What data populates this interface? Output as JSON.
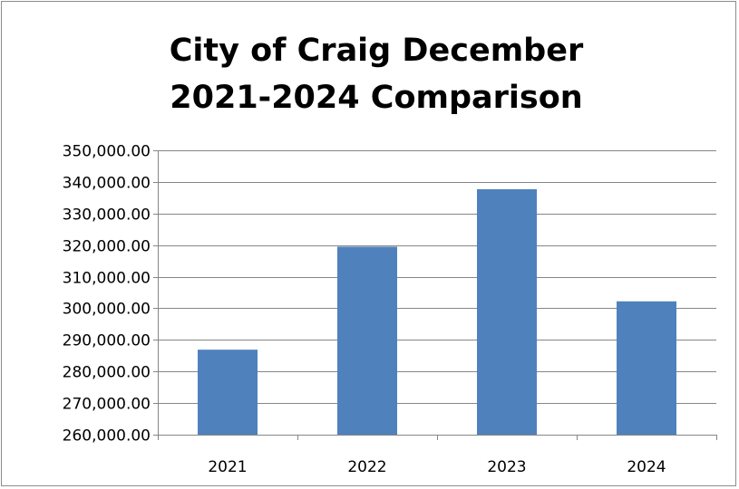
{
  "chart_data": {
    "type": "bar",
    "title_lines": [
      "City of Craig December",
      "2021-2024 Comparison"
    ],
    "categories": [
      "2021",
      "2022",
      "2023",
      "2024"
    ],
    "values": [
      286900,
      319500,
      337700,
      302200
    ],
    "xlabel": "",
    "ylabel": "",
    "ylim": [
      260000,
      350000
    ],
    "ytick_step": 10000,
    "ytick_labels": [
      "260,000.00",
      "270,000.00",
      "280,000.00",
      "290,000.00",
      "300,000.00",
      "310,000.00",
      "320,000.00",
      "330,000.00",
      "340,000.00",
      "350,000.00"
    ],
    "grid": true,
    "legend": "none",
    "bar_color": "#4f81bd",
    "grid_color": "#868686"
  }
}
